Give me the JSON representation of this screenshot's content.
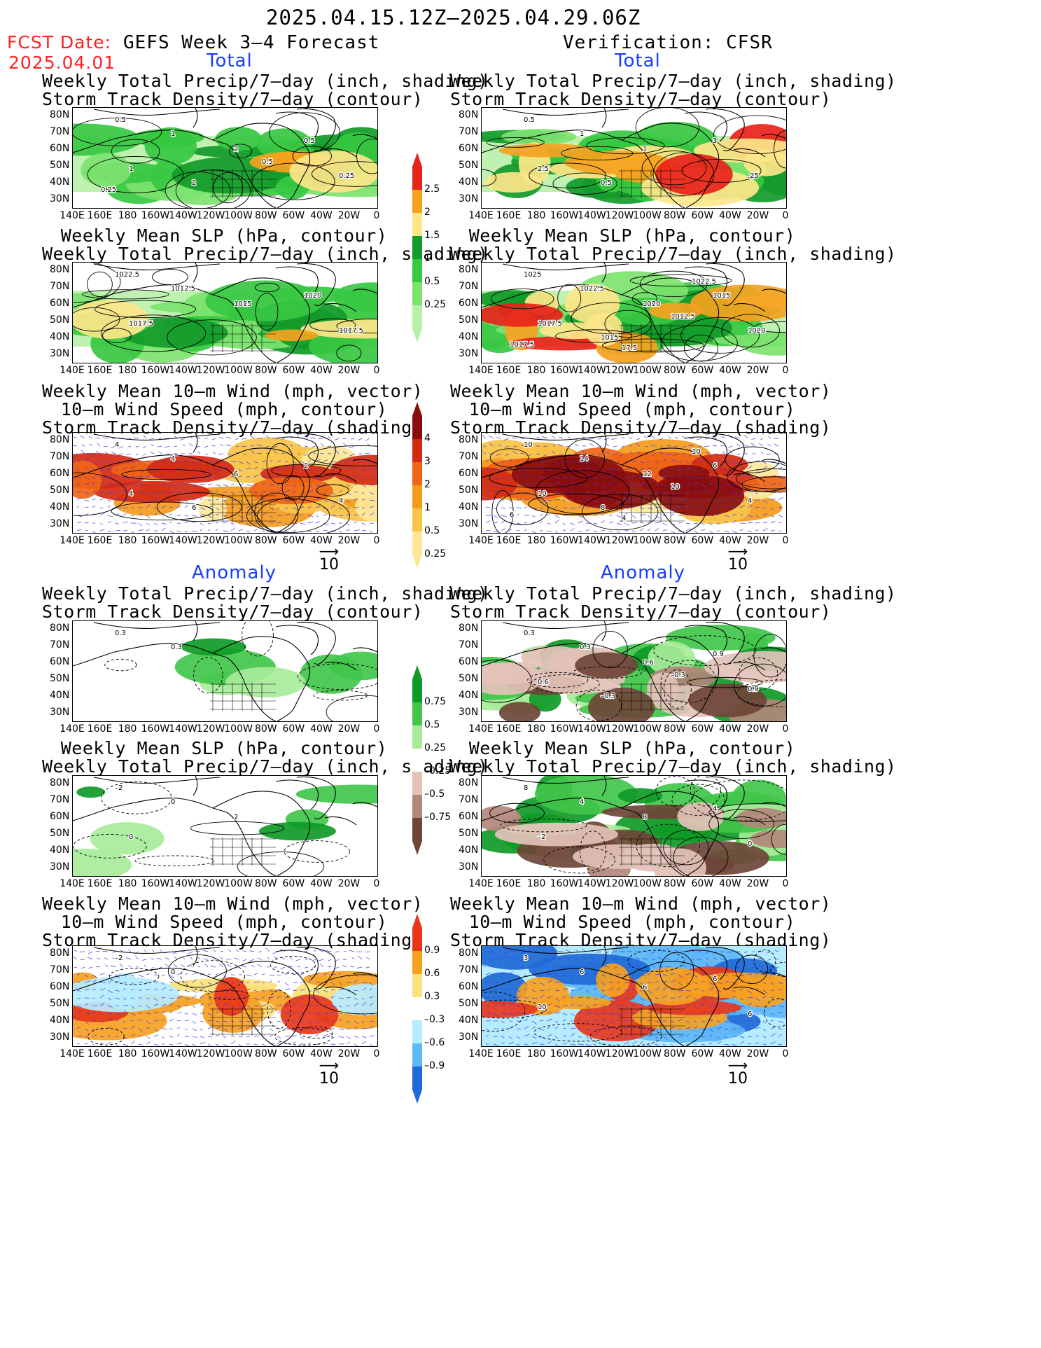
{
  "header": {
    "date_range": "2025.04.15.12Z–2025.04.29.06Z",
    "fcst_label": "FCST Date:",
    "fcst_date": "2025.04.01",
    "left_title": "GEFS Week 3–4 Forecast",
    "right_title": "Verification: CFSR"
  },
  "sections": {
    "total": "Total",
    "anomaly": "Anomaly"
  },
  "panel_titles": {
    "precip_storm": [
      "Weekly Total Precip/7–day (inch, shading)",
      "Storm Track Density/7–day (contour)"
    ],
    "slp_precip": [
      "Weekly Mean SLP (hPa, contour)",
      "Weekly Total Precip/7–day (inch, shading)"
    ],
    "wind_storm": [
      "Weekly Mean 10–m Wind (mph, vector)",
      "10–m Wind Speed (mph, contour)",
      "Storm Track Density/7–day (shading)"
    ]
  },
  "axes": {
    "lat_labels": [
      "80N",
      "70N",
      "60N",
      "50N",
      "40N",
      "30N"
    ],
    "lon_labels": [
      "140E",
      "160E",
      "180",
      "160W",
      "140W",
      "120W",
      "100W",
      "80W",
      "60W",
      "40W",
      "20W",
      "0"
    ]
  },
  "vector_ref": "10",
  "colorbars": {
    "precip_total": {
      "labels": [
        "2.5",
        "2",
        "1.5",
        "1",
        "0.5",
        "0.25"
      ],
      "colors": [
        "#e8231a",
        "#f5a21f",
        "#fde68a",
        "#139a2a",
        "#37c842",
        "#7de36f",
        "#b8f0a8"
      ]
    },
    "storm_total": {
      "labels": [
        "4",
        "3",
        "2",
        "1",
        "0.5",
        "0.25"
      ],
      "colors": [
        "#8a0d0d",
        "#d42a12",
        "#f06515",
        "#f59b1c",
        "#f8c44a",
        "#fde89a"
      ]
    },
    "precip_anom": {
      "labels": [
        "0.75",
        "0.5",
        "0.25",
        "–0.25",
        "–0.5",
        "–0.75"
      ],
      "colors": [
        "#0f9a27",
        "#41c64a",
        "#a7eb9a",
        "#ffffff",
        "#e3c2b9",
        "#b2877b",
        "#6e4538"
      ]
    },
    "storm_anom": {
      "labels": [
        "0.9",
        "0.6",
        "0.3",
        "–0.3",
        "–0.6",
        "–0.9"
      ],
      "colors": [
        "#e8361a",
        "#f7a120",
        "#fbe27a",
        "#ffffff",
        "#b6ecff",
        "#5fb9f5",
        "#1f6ad6"
      ]
    }
  },
  "contour_labels": {
    "p1": [
      "0.5",
      "1",
      "2",
      "1",
      "0.5",
      "0.25",
      "2",
      "0.5",
      "0.25"
    ],
    "p2": [
      "0.5",
      "1",
      "1",
      "2.5",
      "3",
      ".25",
      "0.5"
    ],
    "p3": [
      "1022.5",
      "1012.5",
      "1015",
      "1017.5",
      "1020",
      "1017.5"
    ],
    "p4": [
      "1025",
      "1022.5",
      "1020",
      "1017.5",
      "1015",
      "1020",
      "1015",
      "1012.5",
      "1017.5",
      "1022.5",
      "17.5"
    ],
    "p5": [
      "4",
      "4",
      "6",
      "4",
      "2",
      "4",
      "6"
    ],
    "p6": [
      "10",
      "14",
      "12",
      "10",
      "6",
      "4",
      "8",
      "10",
      "6",
      "10",
      "4"
    ],
    "p7": [
      "0.3",
      "0.3"
    ],
    "p8": [
      "0.3",
      "0.3",
      "0.6",
      "0.6",
      "0.9",
      "0.9",
      "–0.3",
      "–0.3"
    ],
    "p9": [
      "–2",
      "0",
      "2",
      "0"
    ],
    "p10": [
      "8",
      "4",
      "8",
      "–2",
      "4",
      "0"
    ],
    "p11": [
      "–2",
      "0"
    ],
    "p12": [
      "3",
      "6",
      "6",
      "10",
      "6",
      "6"
    ]
  }
}
